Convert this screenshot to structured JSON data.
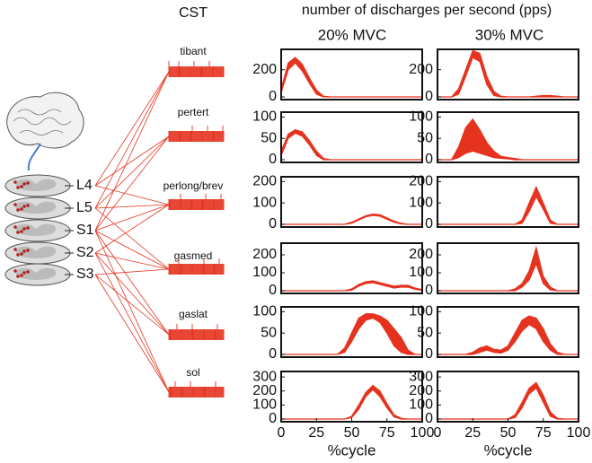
{
  "chart_data": {
    "type": "area",
    "cst_label": "CST",
    "title": "number of discharges per second (pps)",
    "segments": [
      "L4",
      "L5",
      "S1",
      "S2",
      "S3"
    ],
    "columns": [
      "20% MVC",
      "30% MVC"
    ],
    "xlabel": "%cycle",
    "xlim": [
      0,
      100
    ],
    "xticks": [
      0,
      25,
      50,
      75,
      100
    ],
    "color": "#e5331f",
    "x": [
      0,
      5,
      10,
      15,
      20,
      25,
      30,
      35,
      40,
      45,
      50,
      55,
      60,
      65,
      70,
      75,
      80,
      85,
      90,
      95,
      100
    ],
    "rows": [
      {
        "muscle": "tibant",
        "ylim": [
          0,
          330
        ],
        "yticks": [
          0,
          200
        ],
        "panels": [
          {
            "upper": [
              60,
              250,
              290,
              240,
              140,
              50,
              5,
              0,
              0,
              0,
              0,
              0,
              0,
              0,
              0,
              0,
              0,
              0,
              0,
              0,
              0
            ],
            "lower": [
              30,
              200,
              250,
              190,
              100,
              20,
              0,
              0,
              0,
              0,
              0,
              0,
              0,
              0,
              0,
              0,
              0,
              0,
              0,
              0,
              0
            ]
          },
          {
            "upper": [
              0,
              0,
              0,
              60,
              200,
              340,
              320,
              150,
              40,
              5,
              0,
              0,
              0,
              0,
              5,
              10,
              10,
              5,
              0,
              0,
              0
            ],
            "lower": [
              0,
              0,
              0,
              20,
              150,
              290,
              260,
              90,
              10,
              0,
              0,
              0,
              0,
              0,
              0,
              0,
              0,
              0,
              0,
              0,
              0
            ]
          }
        ]
      },
      {
        "muscle": "pertert",
        "ylim": [
          0,
          105
        ],
        "yticks": [
          0,
          50,
          100
        ],
        "panels": [
          {
            "upper": [
              20,
              60,
              70,
              65,
              45,
              20,
              3,
              0,
              0,
              0,
              0,
              0,
              0,
              0,
              0,
              0,
              0,
              0,
              0,
              0,
              0
            ],
            "lower": [
              10,
              50,
              62,
              55,
              35,
              10,
              0,
              0,
              0,
              0,
              0,
              0,
              0,
              0,
              0,
              0,
              0,
              0,
              0,
              0,
              0
            ]
          },
          {
            "upper": [
              0,
              0,
              0,
              30,
              75,
              95,
              70,
              40,
              20,
              8,
              5,
              3,
              0,
              0,
              0,
              0,
              0,
              0,
              0,
              0,
              0
            ],
            "lower": [
              0,
              0,
              0,
              5,
              15,
              20,
              15,
              10,
              5,
              3,
              2,
              0,
              0,
              0,
              0,
              0,
              0,
              0,
              0,
              0,
              0
            ]
          }
        ]
      },
      {
        "muscle": "perlong/brev",
        "ylim": [
          0,
          210
        ],
        "yticks": [
          0,
          100,
          200
        ],
        "panels": [
          {
            "upper": [
              0,
              0,
              0,
              0,
              0,
              0,
              0,
              0,
              0,
              0,
              10,
              25,
              40,
              48,
              45,
              30,
              15,
              5,
              0,
              0,
              0
            ],
            "lower": [
              0,
              0,
              0,
              0,
              0,
              0,
              0,
              0,
              0,
              0,
              5,
              20,
              35,
              42,
              38,
              24,
              10,
              2,
              0,
              0,
              0
            ]
          },
          {
            "upper": [
              0,
              0,
              0,
              0,
              0,
              0,
              0,
              0,
              0,
              0,
              0,
              0,
              20,
              100,
              175,
              100,
              20,
              0,
              0,
              0,
              0
            ],
            "lower": [
              0,
              0,
              0,
              0,
              0,
              0,
              0,
              0,
              0,
              0,
              0,
              0,
              5,
              60,
              130,
              70,
              5,
              0,
              0,
              0,
              0
            ]
          }
        ]
      },
      {
        "muscle": "gasmed",
        "ylim": [
          0,
          250
        ],
        "yticks": [
          0,
          100,
          200
        ],
        "panels": [
          {
            "upper": [
              0,
              0,
              0,
              0,
              0,
              0,
              0,
              0,
              0,
              0,
              10,
              35,
              50,
              55,
              45,
              35,
              25,
              30,
              30,
              15,
              5
            ],
            "lower": [
              0,
              0,
              0,
              0,
              0,
              0,
              0,
              0,
              0,
              0,
              3,
              25,
              40,
              45,
              35,
              25,
              15,
              20,
              20,
              8,
              2
            ]
          },
          {
            "upper": [
              0,
              0,
              0,
              0,
              0,
              0,
              0,
              0,
              0,
              0,
              0,
              10,
              40,
              110,
              240,
              80,
              20,
              0,
              0,
              0,
              0
            ],
            "lower": [
              0,
              0,
              0,
              0,
              0,
              0,
              0,
              0,
              0,
              0,
              0,
              0,
              20,
              60,
              150,
              40,
              5,
              0,
              0,
              0,
              0
            ]
          }
        ]
      },
      {
        "muscle": "gaslat",
        "ylim": [
          0,
          105
        ],
        "yticks": [
          0,
          50,
          100
        ],
        "panels": [
          {
            "upper": [
              0,
              0,
              0,
              0,
              0,
              0,
              0,
              0,
              0,
              15,
              50,
              85,
              95,
              95,
              90,
              80,
              60,
              40,
              10,
              0,
              0
            ],
            "lower": [
              0,
              0,
              0,
              0,
              0,
              0,
              0,
              0,
              0,
              5,
              30,
              60,
              80,
              85,
              75,
              50,
              20,
              5,
              0,
              0,
              0
            ]
          },
          {
            "upper": [
              0,
              0,
              0,
              0,
              0,
              5,
              15,
              20,
              12,
              10,
              20,
              50,
              80,
              90,
              85,
              60,
              25,
              5,
              0,
              0,
              0
            ],
            "lower": [
              0,
              0,
              0,
              0,
              0,
              0,
              5,
              10,
              5,
              3,
              10,
              30,
              55,
              70,
              60,
              30,
              10,
              0,
              0,
              0,
              0
            ]
          }
        ]
      },
      {
        "muscle": "sol",
        "ylim": [
          0,
          320
        ],
        "yticks": [
          0,
          100,
          200,
          300
        ],
        "panels": [
          {
            "upper": [
              0,
              0,
              0,
              0,
              0,
              0,
              0,
              0,
              0,
              0,
              20,
              100,
              190,
              240,
              200,
              110,
              30,
              5,
              0,
              0,
              0
            ],
            "lower": [
              0,
              0,
              0,
              0,
              0,
              0,
              0,
              0,
              0,
              0,
              10,
              70,
              160,
              210,
              160,
              80,
              15,
              0,
              0,
              0,
              0
            ]
          },
          {
            "upper": [
              0,
              0,
              0,
              0,
              0,
              0,
              0,
              0,
              0,
              0,
              0,
              30,
              120,
              220,
              260,
              170,
              50,
              5,
              0,
              0,
              0
            ],
            "lower": [
              0,
              0,
              0,
              0,
              0,
              0,
              0,
              0,
              0,
              0,
              0,
              10,
              80,
              180,
              220,
              120,
              20,
              0,
              0,
              0,
              0
            ]
          }
        ]
      }
    ]
  }
}
